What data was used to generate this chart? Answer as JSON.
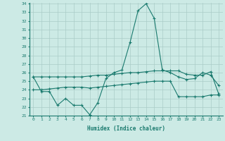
{
  "xlabel": "Humidex (Indice chaleur)",
  "x": [
    0,
    1,
    2,
    3,
    4,
    5,
    6,
    7,
    8,
    9,
    10,
    11,
    12,
    13,
    14,
    15,
    16,
    17,
    18,
    19,
    20,
    21,
    22,
    23
  ],
  "line1": [
    25.5,
    23.8,
    23.8,
    22.2,
    23.0,
    22.2,
    22.2,
    21.1,
    22.5,
    25.3,
    26.0,
    26.3,
    29.5,
    33.2,
    34.0,
    32.3,
    26.3,
    26.0,
    25.5,
    25.2,
    25.3,
    26.0,
    25.7,
    24.5
  ],
  "line2": [
    25.5,
    25.5,
    25.5,
    25.5,
    25.5,
    25.5,
    25.5,
    25.6,
    25.7,
    25.7,
    25.8,
    25.9,
    26.0,
    26.0,
    26.1,
    26.2,
    26.2,
    26.2,
    26.2,
    25.8,
    25.7,
    25.7,
    26.1,
    23.5
  ],
  "line3": [
    24.0,
    24.0,
    24.1,
    24.2,
    24.3,
    24.3,
    24.3,
    24.2,
    24.3,
    24.4,
    24.5,
    24.6,
    24.7,
    24.8,
    24.9,
    25.0,
    25.0,
    25.0,
    23.2,
    23.2,
    23.2,
    23.2,
    23.4,
    23.4
  ],
  "line_color": "#1a7a6e",
  "bg_color": "#cceae5",
  "grid_color": "#aaccc8",
  "ylim": [
    21,
    34
  ],
  "yticks": [
    21,
    22,
    23,
    24,
    25,
    26,
    27,
    28,
    29,
    30,
    31,
    32,
    33,
    34
  ],
  "xticks": [
    0,
    1,
    2,
    3,
    4,
    5,
    6,
    7,
    8,
    9,
    10,
    11,
    12,
    13,
    14,
    15,
    16,
    17,
    18,
    19,
    20,
    21,
    22,
    23
  ]
}
